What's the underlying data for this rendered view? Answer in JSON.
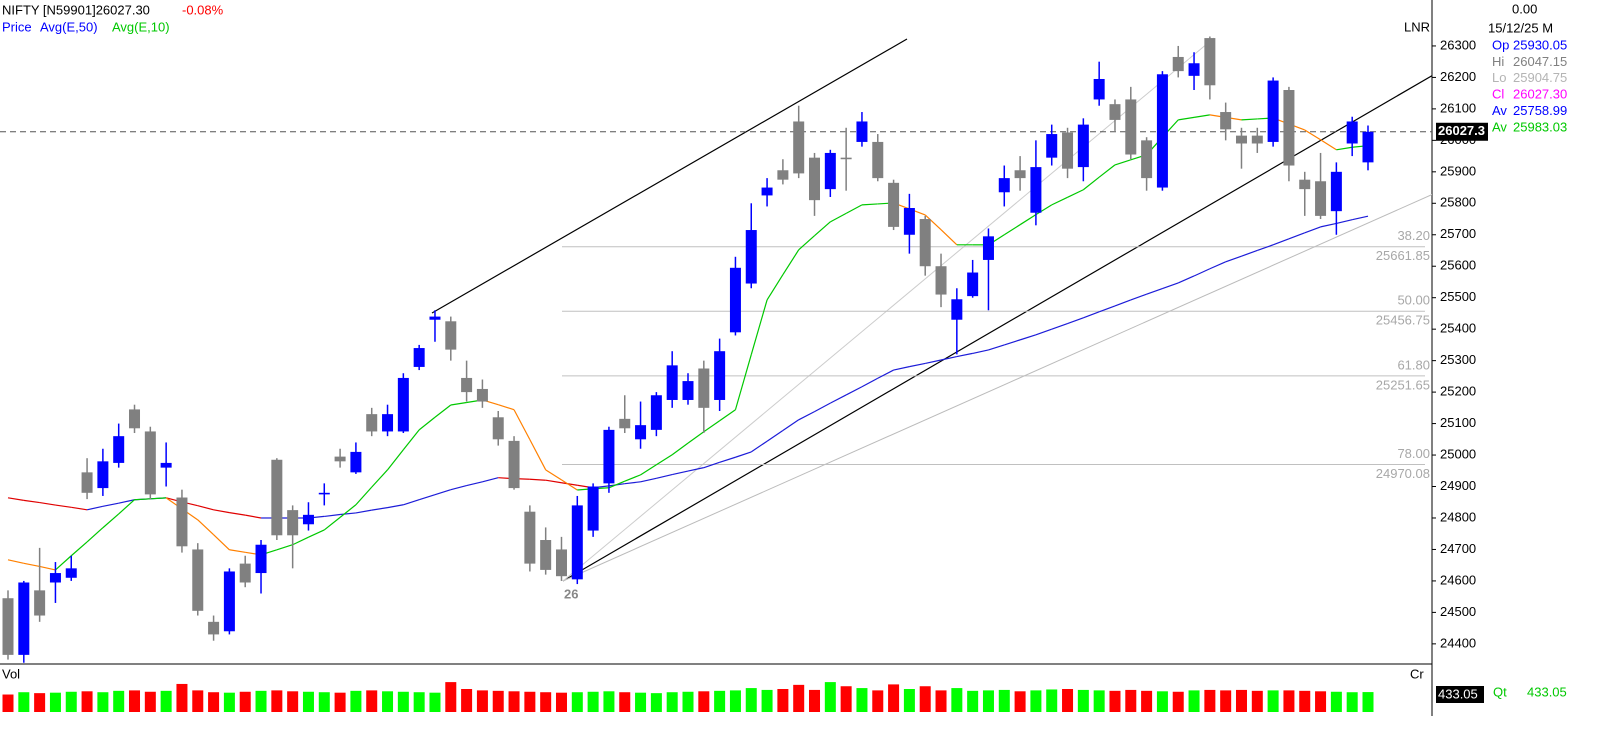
{
  "header": {
    "symbol": "NIFTY [N59901]26027.30",
    "change": "-0.08%"
  },
  "info": {
    "top": "0.00",
    "date": "15/12/25 M",
    "rows": [
      {
        "label": "Op",
        "value": "25930.05",
        "color": "#0000ff"
      },
      {
        "label": "Hi",
        "value": "26047.15",
        "color": "#808080"
      },
      {
        "label": "Lo",
        "value": "25904.75",
        "color": "#b4b4b4"
      },
      {
        "label": "Cl",
        "value": "26027.30",
        "color": "#ff00ff"
      },
      {
        "label": "Av",
        "value": "25758.99",
        "color": "#0000ff"
      },
      {
        "label": "Av",
        "value": "25983.03",
        "color": "#00c800"
      }
    ]
  },
  "chart_data": {
    "type": "candlestick",
    "name": "Price",
    "scale_label": "LNR",
    "annotation": "26",
    "up_color": "#0000ff",
    "down_color": "#808080",
    "ylim": [
      24336,
      26446
    ],
    "yticks": [
      24400,
      24500,
      24600,
      24700,
      24800,
      24900,
      25000,
      25100,
      25200,
      25300,
      25400,
      25500,
      25600,
      25700,
      25800,
      25900,
      26000,
      26100,
      26200,
      26300
    ],
    "open": [
      24545,
      24365,
      24570,
      24595,
      24610,
      24945,
      24895,
      24975,
      25145,
      25075,
      24960,
      24865,
      24700,
      24470,
      24440,
      24655,
      24625,
      24985,
      24825,
      24780,
      24875,
      24995,
      24945,
      25130,
      25075,
      25075,
      25280,
      25430,
      25425,
      25245,
      25210,
      25120,
      25045,
      24820,
      24730,
      24700,
      24605,
      24760,
      24910,
      25115,
      25050,
      25080,
      25175,
      25175,
      25275,
      25175,
      25390,
      25545,
      25825,
      25905,
      26060,
      25945,
      25845,
      25945,
      25995,
      25995,
      25865,
      25700,
      25750,
      25600,
      25430,
      25505,
      25620,
      25835,
      25905,
      25770,
      25945,
      26025,
      25915,
      26130,
      26115,
      26130,
      26000,
      25850,
      26265,
      26205,
      26325,
      26090,
      26015,
      26015,
      25995,
      26160,
      25875,
      25870,
      25775,
      25990,
      25930.05
    ],
    "high": [
      24570,
      24600,
      24705,
      24660,
      24680,
      24990,
      25020,
      25100,
      25160,
      25090,
      25040,
      24890,
      24720,
      24490,
      24640,
      24680,
      24730,
      24990,
      24840,
      24850,
      24910,
      25020,
      25040,
      25150,
      25160,
      25260,
      25350,
      25460,
      25440,
      25300,
      25240,
      25140,
      25060,
      24840,
      24770,
      24740,
      24870,
      24910,
      25090,
      25190,
      25170,
      25200,
      25330,
      25260,
      25300,
      25370,
      25630,
      25800,
      25880,
      25940,
      26110,
      25960,
      25970,
      26040,
      26090,
      26020,
      25875,
      25830,
      25760,
      25640,
      25530,
      25620,
      25720,
      25920,
      25950,
      26000,
      26050,
      26040,
      26070,
      26250,
      26130,
      26170,
      26010,
      26220,
      26300,
      26280,
      26330,
      26120,
      26040,
      26040,
      26200,
      26170,
      25900,
      25960,
      25930,
      26075,
      26047.15
    ],
    "low": [
      24350,
      24340,
      24470,
      24530,
      24600,
      24860,
      24870,
      24960,
      25070,
      24860,
      24900,
      24690,
      24490,
      24410,
      24430,
      24580,
      24560,
      24730,
      24640,
      24760,
      24840,
      24960,
      24940,
      25060,
      25060,
      25070,
      25270,
      25360,
      25300,
      25170,
      25150,
      25030,
      24890,
      24630,
      24620,
      24600,
      24590,
      24740,
      24880,
      25070,
      25020,
      25060,
      25150,
      25160,
      25070,
      25140,
      25380,
      25530,
      25790,
      25860,
      25880,
      25760,
      25820,
      25840,
      25980,
      25870,
      25715,
      25640,
      25570,
      25470,
      25320,
      25500,
      25460,
      25790,
      25840,
      25730,
      25920,
      25880,
      25870,
      26110,
      26030,
      25940,
      25840,
      25840,
      26200,
      26160,
      26130,
      26000,
      25910,
      25960,
      25980,
      25870,
      25760,
      25750,
      25700,
      25950,
      25904.75
    ],
    "close": [
      24365,
      24595,
      24490,
      24625,
      24640,
      24880,
      24980,
      25060,
      25085,
      24875,
      24975,
      24710,
      24505,
      24430,
      24630,
      24595,
      24715,
      24745,
      24745,
      24810,
      24880,
      24980,
      25010,
      25075,
      25130,
      25245,
      25340,
      25440,
      25335,
      25200,
      25170,
      25050,
      24895,
      24655,
      24635,
      24615,
      24840,
      24900,
      25080,
      25085,
      25095,
      25190,
      25285,
      25235,
      25150,
      25330,
      25595,
      25715,
      25850,
      25875,
      25895,
      25810,
      25960,
      25940,
      26060,
      25880,
      25725,
      25785,
      25600,
      25510,
      25495,
      25580,
      25695,
      25880,
      25880,
      25915,
      26020,
      25910,
      26050,
      26195,
      26065,
      25955,
      25880,
      26210,
      26220,
      26245,
      26175,
      26035,
      25990,
      25990,
      26190,
      25920,
      25845,
      25760,
      25900,
      26060,
      26027.3
    ],
    "moving_averages": [
      {
        "name": "Avg(E,50)",
        "up_color": "#1c1cd8",
        "down_color": "#e00000",
        "values": [
          24864,
          24856,
          24849,
          24841,
          24834,
          24826,
          24837,
          24847,
          24858,
          24861,
          24864,
          24851,
          24839,
          24826,
          24817,
          24809,
          24800,
          24800,
          24800,
          24800,
          24805,
          24811,
          24816,
          24825,
          24833,
          24842,
          24858,
          24874,
          24890,
          24903,
          24915,
          24928,
          24925,
          24923,
          24920,
          24912,
          24904,
          24896,
          24902,
          24909,
          24915,
          24926,
          24938,
          24949,
          24960,
          24977,
          24993,
          25010,
          25044,
          25078,
          25112,
          25138,
          25165,
          25191,
          25217,
          25244,
          25270,
          25281,
          25291,
          25302,
          25313,
          25323,
          25334,
          25350,
          25366,
          25382,
          25400,
          25418,
          25436,
          25455,
          25474,
          25493,
          25511,
          25529,
          25547,
          25569,
          25592,
          25614,
          25632,
          25650,
          25668,
          25687,
          25706,
          25725,
          25736,
          25748,
          25758.99
        ]
      },
      {
        "name": "Avg(E,10)",
        "up_color": "#00c800",
        "down_color": "#ff8000",
        "values": [
          24667,
          24656,
          24646,
          24635,
          24680,
          24724,
          24769,
          24813,
          24858,
          24861,
          24864,
          24829,
          24794,
          24747,
          24699,
          24691,
          24683,
          24699,
          24715,
          24739,
          24762,
          24802,
          24842,
          24898,
          24953,
          25017,
          25080,
          25120,
          25159,
          25167,
          25175,
          25160,
          25144,
          25049,
          24953,
          24921,
          24889,
          24893,
          24896,
          24917,
          24937,
          24969,
          25001,
          25038,
          25074,
          25109,
          25144,
          25319,
          25493,
          25573,
          25652,
          25697,
          25741,
          25768,
          25795,
          25798,
          25801,
          25782,
          25763,
          25716,
          25668,
          25668,
          25668,
          25700,
          25732,
          25764,
          25795,
          25819,
          25843,
          25883,
          25922,
          25938,
          25954,
          26010,
          26065,
          26073,
          26081,
          26073,
          26065,
          26068,
          26071,
          26052,
          26033,
          26002,
          25970,
          25978,
          25983.03
        ]
      }
    ],
    "fib_levels": [
      {
        "ratio": "38.20",
        "value": 25661.85
      },
      {
        "ratio": "50.00",
        "value": 25456.75
      },
      {
        "ratio": "61.80",
        "value": 25251.65
      },
      {
        "ratio": "78.00",
        "value": 24970.08
      }
    ],
    "fib_color": "#c0c0c0",
    "volume": {
      "label": "Vol",
      "unit_label": "Cr",
      "qty_label": "Qt",
      "ylim": [
        0,
        1000
      ],
      "up_color": "#00ff00",
      "down_color": "#ff0000",
      "values": [
        380,
        430,
        410,
        420,
        440,
        450,
        430,
        460,
        470,
        440,
        460,
        610,
        470,
        430,
        420,
        440,
        460,
        470,
        450,
        440,
        430,
        420,
        460,
        470,
        450,
        440,
        430,
        420,
        650,
        500,
        470,
        460,
        450,
        440,
        430,
        420,
        430,
        440,
        450,
        430,
        420,
        410,
        430,
        440,
        450,
        460,
        470,
        520,
        480,
        500,
        590,
        480,
        650,
        560,
        520,
        470,
        600,
        500,
        560,
        470,
        520,
        460,
        470,
        480,
        450,
        470,
        490,
        500,
        480,
        470,
        460,
        480,
        460,
        450,
        440,
        470,
        480,
        470,
        480,
        460,
        470,
        470,
        460,
        450,
        440,
        430,
        433.05
      ]
    }
  }
}
